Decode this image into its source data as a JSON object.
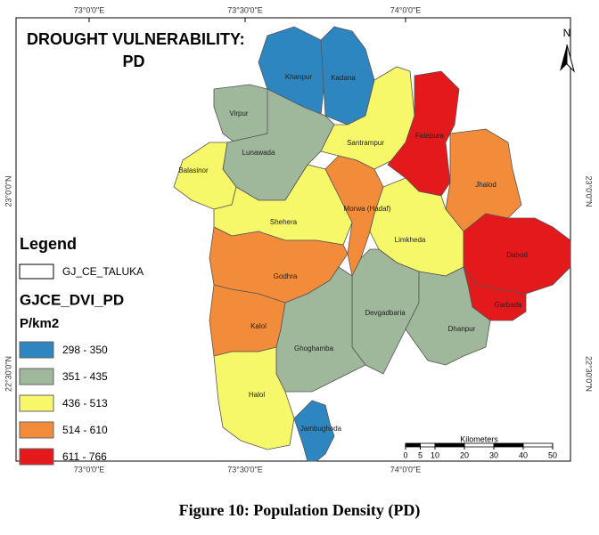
{
  "title": [
    "DROUGHT VULNERABILITY:",
    "PD"
  ],
  "north_arrow": "N",
  "graticule": {
    "longitudes": [
      "73°0'0\"E",
      "73°30'0\"E",
      "74°0'0\"E"
    ],
    "latitudes": [
      "23°0'0\"N",
      "22°30'0\"N"
    ]
  },
  "legend": {
    "title": "Legend",
    "layer": "GJ_CE_TALUKA",
    "field": "GJCE_DVI_PD",
    "unit": "P/km2",
    "classes": [
      {
        "label": "298 - 350",
        "color": "#2e86c1"
      },
      {
        "label": "351 - 435",
        "color": "#9fb79a"
      },
      {
        "label": "436 - 513",
        "color": "#f7f76a"
      },
      {
        "label": "514 - 610",
        "color": "#f28c3a"
      },
      {
        "label": "611 - 766",
        "color": "#e3191c"
      }
    ]
  },
  "talukas": [
    {
      "name": "Khanpur",
      "color": "#2e86c1"
    },
    {
      "name": "Kadana",
      "color": "#2e86c1"
    },
    {
      "name": "Virpur",
      "color": "#9fb79a"
    },
    {
      "name": "Lunawada",
      "color": "#9fb79a"
    },
    {
      "name": "Santrampur",
      "color": "#f7f76a"
    },
    {
      "name": "Fatepura",
      "color": "#e3191c"
    },
    {
      "name": "Jhalod",
      "color": "#f28c3a"
    },
    {
      "name": "Balasinor",
      "color": "#f7f76a"
    },
    {
      "name": "Shehera",
      "color": "#f7f76a"
    },
    {
      "name": "Morwa (Hadaf)",
      "color": "#f28c3a"
    },
    {
      "name": "Limkheda",
      "color": "#f7f76a"
    },
    {
      "name": "Dahod",
      "color": "#e3191c"
    },
    {
      "name": "Garbada",
      "color": "#e3191c"
    },
    {
      "name": "Godhra",
      "color": "#f28c3a"
    },
    {
      "name": "Devgadbaria",
      "color": "#9fb79a"
    },
    {
      "name": "Dhanpur",
      "color": "#9fb79a"
    },
    {
      "name": "Kalol",
      "color": "#f28c3a"
    },
    {
      "name": "Ghoghamba",
      "color": "#9fb79a"
    },
    {
      "name": "Halol",
      "color": "#f7f76a"
    },
    {
      "name": "Jambughoda",
      "color": "#2e86c1"
    }
  ],
  "scale_bar": {
    "label": "Kilometers",
    "ticks": [
      0,
      5,
      10,
      20,
      30,
      40,
      50
    ]
  },
  "caption": "Figure 10: Population Density (PD)"
}
